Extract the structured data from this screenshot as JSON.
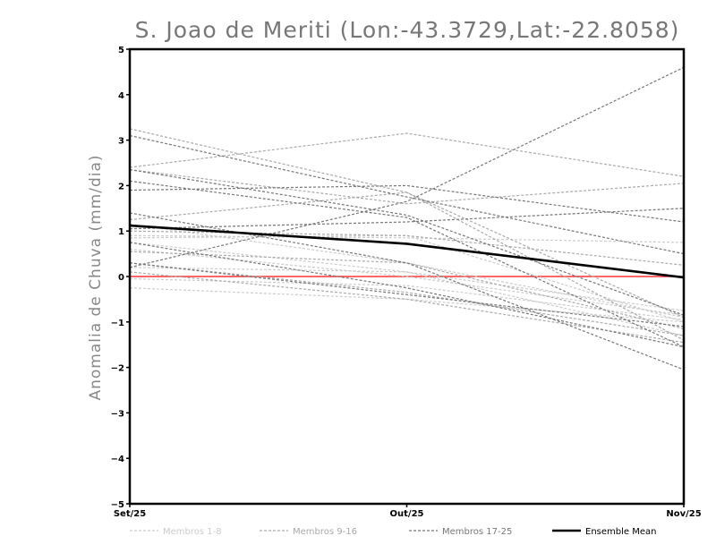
{
  "chart_data": {
    "type": "line",
    "title": "S. Joao de Meriti (Lon:-43.3729,Lat:-22.8058)",
    "ylabel": "Anomalia de Chuva (mm/dia)",
    "xlabel": "",
    "categories": [
      "Set/25",
      "Out/25",
      "Nov/25"
    ],
    "yticks": [
      5,
      4,
      3,
      2,
      1,
      0,
      -1,
      -2,
      -3,
      -4,
      -5
    ],
    "ylim": [
      -5,
      5
    ],
    "zero_line_color": "#ff3333",
    "groups": [
      {
        "name": "Membros 1-8",
        "color": "#cccccc",
        "dashed": true
      },
      {
        "name": "Membros 9-16",
        "color": "#aaaaaa",
        "dashed": true
      },
      {
        "name": "Membros 17-25",
        "color": "#777777",
        "dashed": true
      },
      {
        "name": "Ensemble Mean",
        "color": "#000000",
        "dashed": false
      }
    ],
    "series": [
      {
        "group": 0,
        "values": [
          1.15,
          0.3,
          -0.9
        ]
      },
      {
        "group": 0,
        "values": [
          0.9,
          0.85,
          0.75
        ]
      },
      {
        "group": 0,
        "values": [
          0.85,
          0.9,
          -1.0
        ]
      },
      {
        "group": 0,
        "values": [
          0.75,
          0.1,
          -0.75
        ]
      },
      {
        "group": 0,
        "values": [
          0.6,
          0.0,
          -0.85
        ]
      },
      {
        "group": 0,
        "values": [
          0.2,
          0.1,
          -1.3
        ]
      },
      {
        "group": 0,
        "values": [
          -0.05,
          -0.2,
          -0.95
        ]
      },
      {
        "group": 0,
        "values": [
          -0.25,
          -0.5,
          -1.0
        ]
      },
      {
        "group": 1,
        "values": [
          3.25,
          1.85,
          -0.9
        ]
      },
      {
        "group": 1,
        "values": [
          2.4,
          3.15,
          2.2
        ]
      },
      {
        "group": 1,
        "values": [
          2.35,
          1.6,
          2.05
        ]
      },
      {
        "group": 1,
        "values": [
          1.25,
          1.85,
          -1.4
        ]
      },
      {
        "group": 1,
        "values": [
          1.0,
          0.9,
          0.25
        ]
      },
      {
        "group": 1,
        "values": [
          0.55,
          0.3,
          -1.15
        ]
      },
      {
        "group": 1,
        "values": [
          0.3,
          -0.35,
          -1.3
        ]
      },
      {
        "group": 1,
        "values": [
          0.1,
          -0.5,
          -1.45
        ]
      },
      {
        "group": 2,
        "values": [
          3.1,
          1.75,
          0.5
        ]
      },
      {
        "group": 2,
        "values": [
          2.35,
          1.35,
          -0.85
        ]
      },
      {
        "group": 2,
        "values": [
          2.1,
          1.3,
          -1.55
        ]
      },
      {
        "group": 2,
        "values": [
          1.9,
          2.0,
          1.2
        ]
      },
      {
        "group": 2,
        "values": [
          1.4,
          0.3,
          -2.05
        ]
      },
      {
        "group": 2,
        "values": [
          1.05,
          1.2,
          1.5
        ]
      },
      {
        "group": 2,
        "values": [
          0.75,
          -0.25,
          -1.55
        ]
      },
      {
        "group": 2,
        "values": [
          0.3,
          -0.4,
          -1.1
        ]
      },
      {
        "group": 2,
        "values": [
          0.2,
          1.65,
          4.6
        ]
      },
      {
        "group": 3,
        "values": [
          1.12,
          0.72,
          -0.02
        ]
      }
    ]
  }
}
